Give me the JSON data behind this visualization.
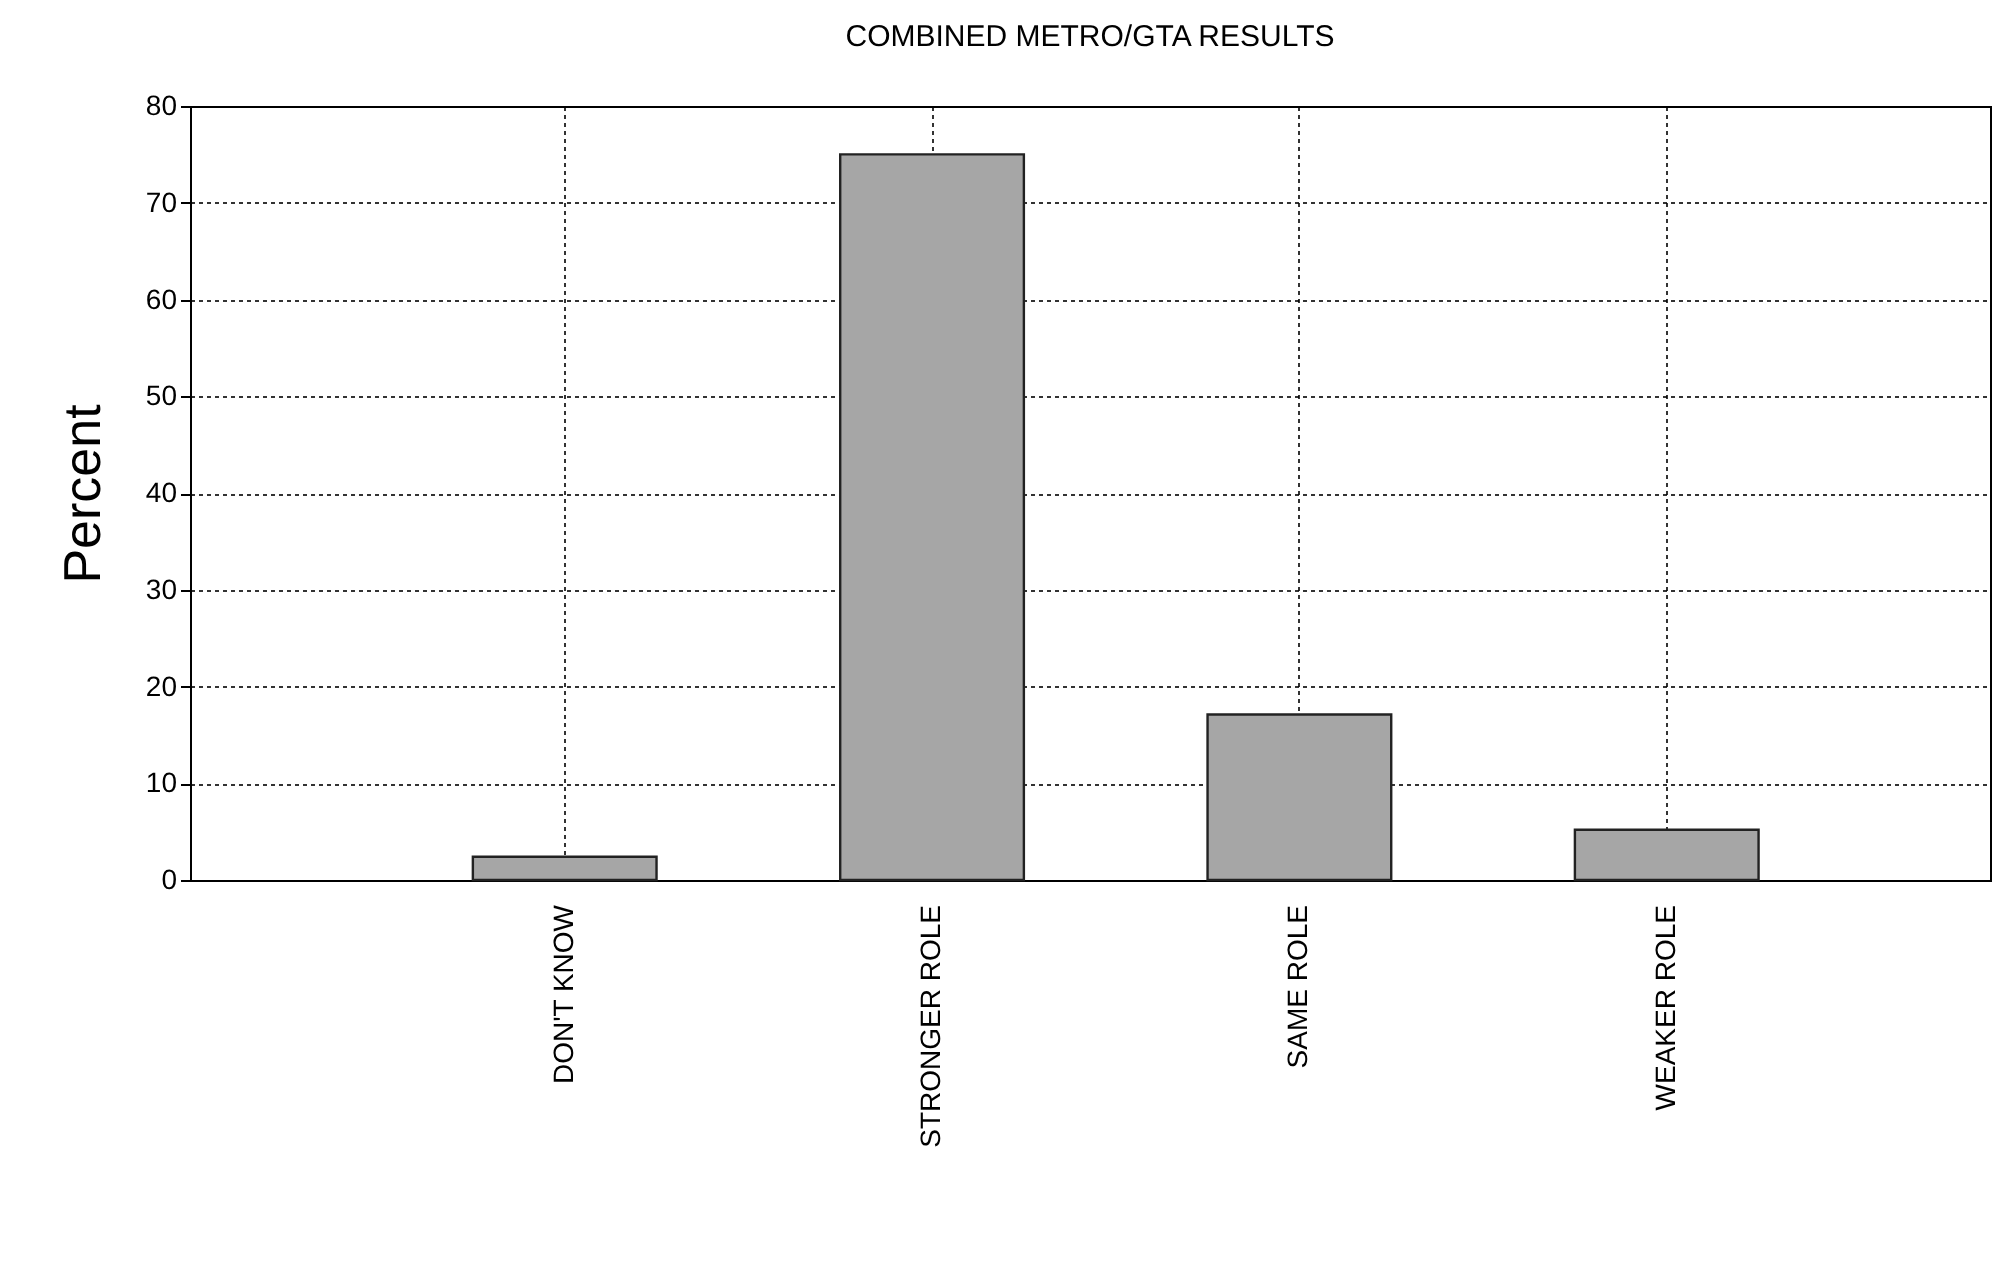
{
  "chart_data": {
    "type": "bar",
    "title": "COMBINED METRO/GTA RESULTS",
    "ylabel": "Percent",
    "categories": [
      "DON'T KNOW",
      "STRONGER ROLE",
      "SAME ROLE",
      "WEAKER ROLE"
    ],
    "values": [
      2.4,
      75,
      17.1,
      5.2
    ],
    "color": "#a6a6a6",
    "ylim": [
      0,
      80
    ],
    "yticks": [
      0,
      10,
      20,
      30,
      40,
      50,
      60,
      70,
      80
    ],
    "grid": true
  }
}
